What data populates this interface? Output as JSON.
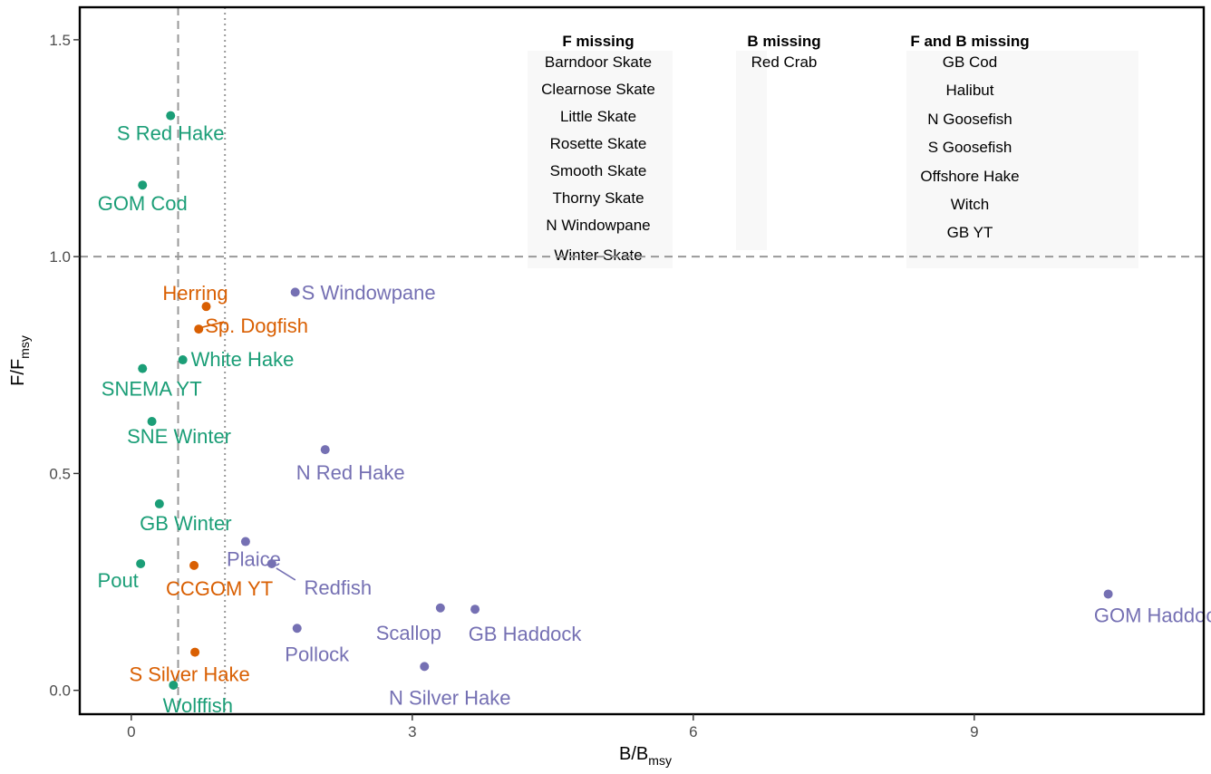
{
  "chart_data": {
    "type": "scatter",
    "xlabel": "B/B",
    "xlabel_sub": "msy",
    "ylabel": "F/F",
    "ylabel_sub": "msy",
    "xlim": [
      -0.55,
      11.45
    ],
    "ylim": [
      -0.055,
      1.575
    ],
    "x_ticks": [
      0,
      3,
      6,
      9
    ],
    "y_ticks": [
      0.0,
      0.5,
      1.0,
      1.5
    ],
    "x_tick_labels": [
      "0",
      "3",
      "6",
      "9"
    ],
    "y_tick_labels": [
      "0.0",
      "0.5",
      "1.0",
      "1.5"
    ],
    "reference_lines": {
      "vertical_dashed_x": 0.5,
      "vertical_dotted_x": 1.0,
      "horizontal_dashed_y": 1.0
    },
    "grid": false,
    "legend": "none",
    "colors": {
      "green": "#1b9e77",
      "orange": "#d95f02",
      "purple": "#7570b3"
    },
    "points": [
      {
        "name": "S Red Hake",
        "x": 0.42,
        "y": 1.325,
        "color": "green"
      },
      {
        "name": "GOM Cod",
        "x": 0.12,
        "y": 1.165,
        "color": "green"
      },
      {
        "name": "Herring",
        "x": 0.8,
        "y": 0.885,
        "color": "orange"
      },
      {
        "name": "S Windowpane",
        "x": 1.75,
        "y": 0.918,
        "color": "purple"
      },
      {
        "name": "Sp. Dogfish",
        "x": 0.72,
        "y": 0.833,
        "color": "orange"
      },
      {
        "name": "White Hake",
        "x": 0.55,
        "y": 0.762,
        "color": "green"
      },
      {
        "name": "SNEMA YT",
        "x": 0.12,
        "y": 0.742,
        "color": "green"
      },
      {
        "name": "SNE Winter",
        "x": 0.22,
        "y": 0.62,
        "color": "green"
      },
      {
        "name": "N Red Hake",
        "x": 2.07,
        "y": 0.555,
        "color": "purple"
      },
      {
        "name": "GB Winter",
        "x": 0.3,
        "y": 0.43,
        "color": "green"
      },
      {
        "name": "Plaice",
        "x": 1.22,
        "y": 0.343,
        "color": "purple"
      },
      {
        "name": "Pout",
        "x": 0.1,
        "y": 0.292,
        "color": "green"
      },
      {
        "name": "CCGOM YT",
        "x": 0.67,
        "y": 0.288,
        "color": "orange"
      },
      {
        "name": "Redfish",
        "x": 1.5,
        "y": 0.292,
        "color": "purple"
      },
      {
        "name": "Scallop",
        "x": 3.3,
        "y": 0.19,
        "color": "purple"
      },
      {
        "name": "GB Haddock",
        "x": 3.67,
        "y": 0.187,
        "color": "purple"
      },
      {
        "name": "GOM Haddock",
        "x": 10.43,
        "y": 0.222,
        "color": "purple"
      },
      {
        "name": "Pollock",
        "x": 1.77,
        "y": 0.143,
        "color": "purple"
      },
      {
        "name": "S Silver Hake",
        "x": 0.68,
        "y": 0.088,
        "color": "orange"
      },
      {
        "name": "N Silver Hake",
        "x": 3.13,
        "y": 0.055,
        "color": "purple"
      },
      {
        "name": "Wolffish",
        "x": 0.45,
        "y": 0.012,
        "color": "green"
      }
    ],
    "missing_tables": [
      {
        "header": "F missing",
        "items": [
          "Barndoor Skate",
          "Clearnose Skate",
          "Little Skate",
          "Rosette Skate",
          "Smooth Skate",
          "Thorny Skate",
          "N Windowpane",
          "Winter Skate"
        ]
      },
      {
        "header": "B missing",
        "items": [
          "Red Crab"
        ]
      },
      {
        "header": "F and B missing",
        "items": [
          "GB Cod",
          "Halibut",
          "N Goosefish",
          "S Goosefish",
          "Offshore Hake",
          "Witch",
          "GB YT"
        ]
      }
    ]
  }
}
